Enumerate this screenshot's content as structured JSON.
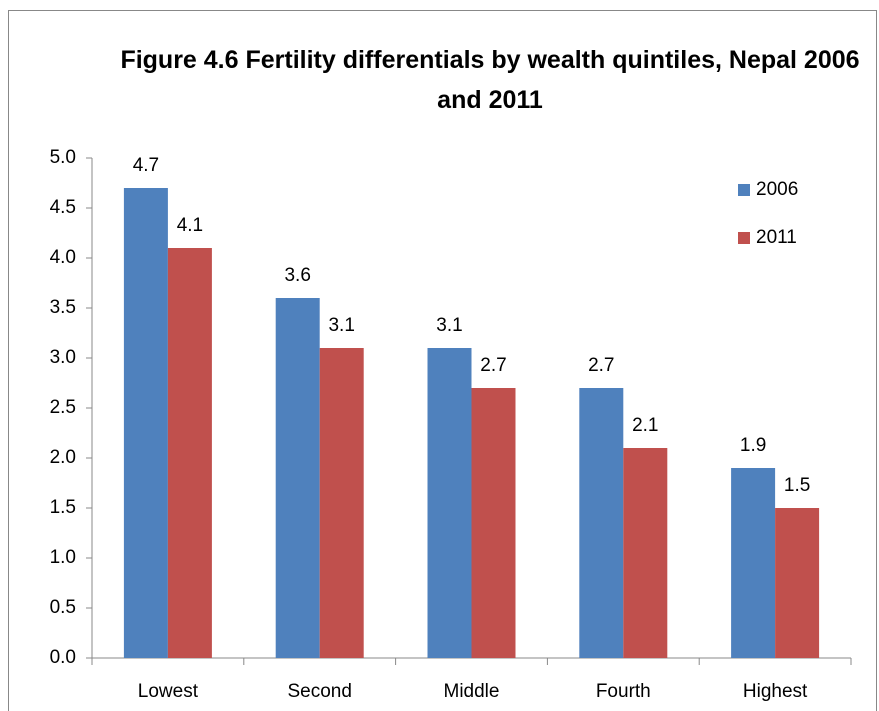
{
  "chart_data": {
    "type": "bar",
    "title": "Figure 4.6 Fertility differentials by wealth quintiles, Nepal 2006 and 2011",
    "categories": [
      "Lowest",
      "Second",
      "Middle",
      "Fourth",
      "Highest"
    ],
    "series": [
      {
        "name": "2006",
        "color": "#4f81bd",
        "values": [
          4.7,
          3.6,
          3.1,
          2.7,
          1.9
        ]
      },
      {
        "name": "2011",
        "color": "#c0504d",
        "values": [
          4.1,
          3.1,
          2.7,
          2.1,
          1.5
        ]
      }
    ],
    "ylim": [
      0,
      5
    ],
    "yticks": [
      {
        "value": 0,
        "label": "0.0"
      },
      0.5,
      {
        "value": 1,
        "label": "1.0"
      },
      1.5,
      {
        "value": 2,
        "label": "2.0"
      },
      2.5,
      {
        "value": 3,
        "label": "3.0"
      },
      3.5,
      {
        "value": 4,
        "label": "4.0"
      },
      4.5,
      {
        "value": 5,
        "label": "5.0"
      }
    ],
    "legend": "right"
  }
}
